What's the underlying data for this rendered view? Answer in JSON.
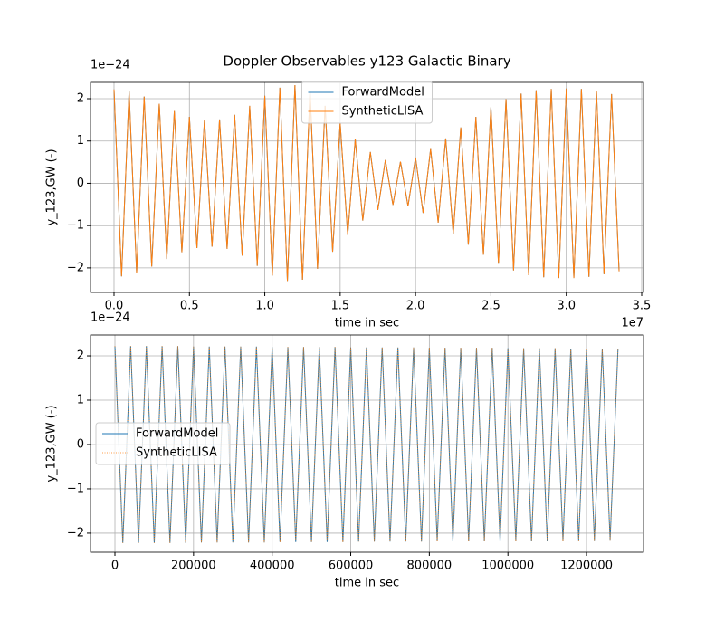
{
  "chart_data": [
    {
      "type": "line",
      "title": "Doppler Observables y123 Galactic Binary",
      "xlabel": "time in sec",
      "ylabel": "y_123,GW (-)",
      "x_offset_label": "1e7",
      "y_offset_label": "1e−24",
      "xlim": [
        -0.156,
        3.512
      ],
      "ylim": [
        -2.58,
        2.385
      ],
      "xticks": [
        {
          "value": 0,
          "label": "0.0"
        },
        0.5,
        {
          "value": 1,
          "label": "1.0"
        },
        1.5,
        {
          "value": 2,
          "label": "2.0"
        },
        2.5,
        {
          "value": 3,
          "label": "3.0"
        },
        3.5
      ],
      "yticks": [
        {
          "value": -2,
          "label": "−2"
        },
        {
          "value": -1,
          "label": "−1"
        },
        0,
        1,
        2
      ],
      "grid": true,
      "legend_loc": "upper center",
      "x": [
        0,
        0.05,
        0.1,
        0.15,
        0.2,
        0.25,
        0.3,
        0.35,
        0.4,
        0.45,
        0.5,
        0.55,
        0.6,
        0.65,
        0.7,
        0.75,
        0.8,
        0.85,
        0.9,
        0.95,
        1.0,
        1.05,
        1.1,
        1.15,
        1.2,
        1.25,
        1.3,
        1.35,
        1.4,
        1.45,
        1.5,
        1.55,
        1.6,
        1.65,
        1.7,
        1.75,
        1.8,
        1.85,
        1.9,
        1.95,
        2.0,
        2.05,
        2.1,
        2.15,
        2.2,
        2.25,
        2.3,
        2.35,
        2.4,
        2.45,
        2.5,
        2.55,
        2.6,
        2.65,
        2.7,
        2.75,
        2.8,
        2.85,
        2.9,
        2.95,
        3.0,
        3.05,
        3.1,
        3.15,
        3.2,
        3.25,
        3.3,
        3.35
      ],
      "series": [
        {
          "name": "ForwardModel",
          "color": "#1f77b4",
          "linestyle": "solid",
          "values": [
            2.22,
            -2.2,
            2.17,
            -2.12,
            2.05,
            -1.97,
            1.88,
            -1.79,
            1.71,
            -1.63,
            1.57,
            -1.53,
            1.5,
            -1.5,
            1.51,
            -1.55,
            1.62,
            -1.71,
            1.83,
            -1.95,
            2.07,
            -2.18,
            2.26,
            -2.31,
            2.32,
            -2.28,
            2.18,
            -2.02,
            1.83,
            -1.62,
            1.42,
            -1.22,
            1.04,
            -0.88,
            0.74,
            -0.63,
            0.55,
            -0.51,
            0.51,
            -0.54,
            0.61,
            -0.7,
            0.81,
            -0.93,
            1.06,
            -1.19,
            1.32,
            -1.45,
            1.57,
            -1.69,
            1.8,
            -1.9,
            1.99,
            -2.06,
            2.12,
            -2.17,
            2.2,
            -2.22,
            2.23,
            -2.24,
            2.24,
            -2.24,
            2.23,
            -2.21,
            2.18,
            -2.15,
            2.11,
            -2.08
          ]
        },
        {
          "name": "SyntheticLISA",
          "color": "#ff7f0e",
          "linestyle": "solid",
          "values": [
            2.22,
            -2.2,
            2.17,
            -2.12,
            2.05,
            -1.97,
            1.88,
            -1.79,
            1.71,
            -1.63,
            1.57,
            -1.53,
            1.5,
            -1.5,
            1.51,
            -1.55,
            1.62,
            -1.71,
            1.83,
            -1.95,
            2.07,
            -2.18,
            2.26,
            -2.31,
            2.32,
            -2.28,
            2.18,
            -2.02,
            1.83,
            -1.62,
            1.42,
            -1.22,
            1.04,
            -0.88,
            0.74,
            -0.63,
            0.55,
            -0.51,
            0.51,
            -0.54,
            0.61,
            -0.7,
            0.81,
            -0.93,
            1.06,
            -1.19,
            1.32,
            -1.45,
            1.57,
            -1.69,
            1.8,
            -1.9,
            1.99,
            -2.06,
            2.12,
            -2.17,
            2.2,
            -2.22,
            2.23,
            -2.24,
            2.24,
            -2.24,
            2.23,
            -2.21,
            2.18,
            -2.15,
            2.11,
            -2.08
          ]
        }
      ]
    },
    {
      "type": "line",
      "xlabel": "time in sec",
      "ylabel": "y_123,GW (-)",
      "y_offset_label": "1e−24",
      "xlim": [
        -62200,
        1345000
      ],
      "ylim": [
        -2.43,
        2.47
      ],
      "xticks": [
        0,
        200000,
        400000,
        600000,
        800000,
        1000000,
        1200000
      ],
      "yticks": [
        {
          "value": -2,
          "label": "−2"
        },
        {
          "value": -1,
          "label": "−1"
        },
        0,
        1,
        2
      ],
      "grid": true,
      "legend_loc": "center left",
      "x": [
        0,
        20000,
        40000,
        60000,
        80000,
        100000,
        120000,
        140000,
        160000,
        180000,
        200000,
        220000,
        240000,
        260000,
        280000,
        300000,
        320000,
        340000,
        360000,
        380000,
        400000,
        420000,
        440000,
        460000,
        480000,
        500000,
        520000,
        540000,
        560000,
        580000,
        600000,
        620000,
        640000,
        660000,
        680000,
        700000,
        720000,
        740000,
        760000,
        780000,
        800000,
        820000,
        840000,
        860000,
        880000,
        900000,
        920000,
        940000,
        960000,
        980000,
        1000000,
        1020000,
        1040000,
        1060000,
        1080000,
        1100000,
        1120000,
        1140000,
        1160000,
        1180000,
        1200000,
        1220000,
        1240000,
        1260000,
        1280000
      ],
      "series": [
        {
          "name": "ForwardModel",
          "color": "#1f77b4",
          "linestyle": "solid",
          "values": [
            2.22,
            -2.22,
            2.22,
            -2.22,
            2.22,
            -2.22,
            2.22,
            -2.22,
            2.22,
            -2.22,
            2.21,
            -2.21,
            2.21,
            -2.21,
            2.21,
            -2.21,
            2.21,
            -2.21,
            2.21,
            -2.21,
            2.2,
            -2.2,
            2.2,
            -2.2,
            2.2,
            -2.2,
            2.2,
            -2.2,
            2.2,
            -2.2,
            2.19,
            -2.19,
            2.19,
            -2.19,
            2.19,
            -2.19,
            2.19,
            -2.19,
            2.19,
            -2.19,
            2.18,
            -2.18,
            2.18,
            -2.18,
            2.18,
            -2.18,
            2.18,
            -2.18,
            2.18,
            -2.18,
            2.17,
            -2.17,
            2.17,
            -2.17,
            2.17,
            -2.17,
            2.17,
            -2.17,
            2.16,
            -2.16,
            2.16,
            -2.16,
            2.15,
            -2.15,
            2.15
          ]
        },
        {
          "name": "SyntheticLISA",
          "color": "#ff7f0e",
          "linestyle": "dotted",
          "values": [
            2.22,
            -2.22,
            2.22,
            -2.22,
            2.22,
            -2.22,
            2.22,
            -2.22,
            2.22,
            -2.22,
            2.21,
            -2.21,
            2.21,
            -2.21,
            2.21,
            -2.21,
            2.21,
            -2.21,
            2.21,
            -2.21,
            2.2,
            -2.2,
            2.2,
            -2.2,
            2.2,
            -2.2,
            2.2,
            -2.2,
            2.2,
            -2.2,
            2.19,
            -2.19,
            2.19,
            -2.19,
            2.19,
            -2.19,
            2.19,
            -2.19,
            2.19,
            -2.19,
            2.18,
            -2.18,
            2.18,
            -2.18,
            2.18,
            -2.18,
            2.18,
            -2.18,
            2.18,
            -2.18,
            2.17,
            -2.17,
            2.17,
            -2.17,
            2.17,
            -2.17,
            2.17,
            -2.17,
            2.16,
            -2.16,
            2.16,
            -2.16,
            2.15,
            -2.15,
            2.15
          ]
        }
      ]
    }
  ]
}
